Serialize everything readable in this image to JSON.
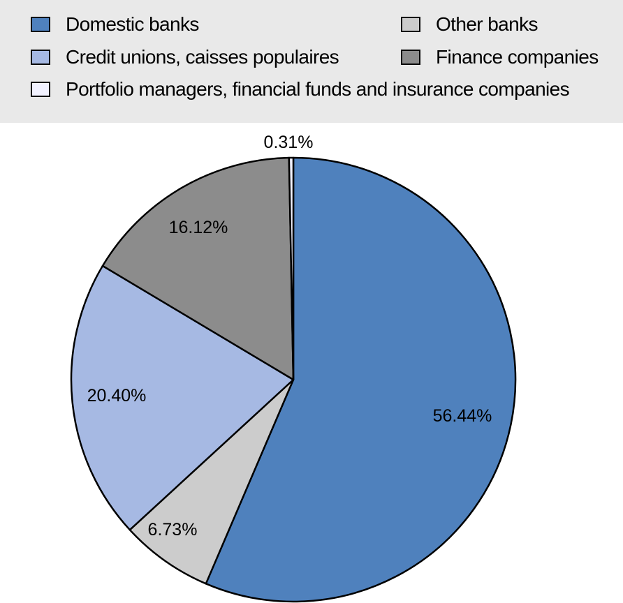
{
  "chart_data": {
    "type": "pie",
    "title": "",
    "legend_position": "top",
    "slices": [
      {
        "name": "Domestic banks",
        "value": 56.44,
        "label": "56.44%",
        "color": "#4f81bd"
      },
      {
        "name": "Other banks",
        "value": 6.73,
        "label": "6.73%",
        "color": "#cccccc"
      },
      {
        "name": "Credit unions, caisses populaires",
        "value": 20.4,
        "label": "20.40%",
        "color": "#a6b9e3"
      },
      {
        "name": "Finance companies",
        "value": 16.12,
        "label": "16.12%",
        "color": "#8c8c8c"
      },
      {
        "name": "Portfolio managers, financial funds and insurance companies",
        "value": 0.31,
        "label": "0.31%",
        "color": "#f2f2ff"
      }
    ],
    "legend": [
      {
        "name": "Domestic banks",
        "color": "#4f81bd"
      },
      {
        "name": "Other banks",
        "color": "#cccccc"
      },
      {
        "name": "Credit unions, caisses populaires",
        "color": "#a6b9e3"
      },
      {
        "name": "Finance companies",
        "color": "#8c8c8c"
      },
      {
        "name": "Portfolio managers, financial funds and insurance companies",
        "color": "#f2f2ff"
      }
    ]
  }
}
